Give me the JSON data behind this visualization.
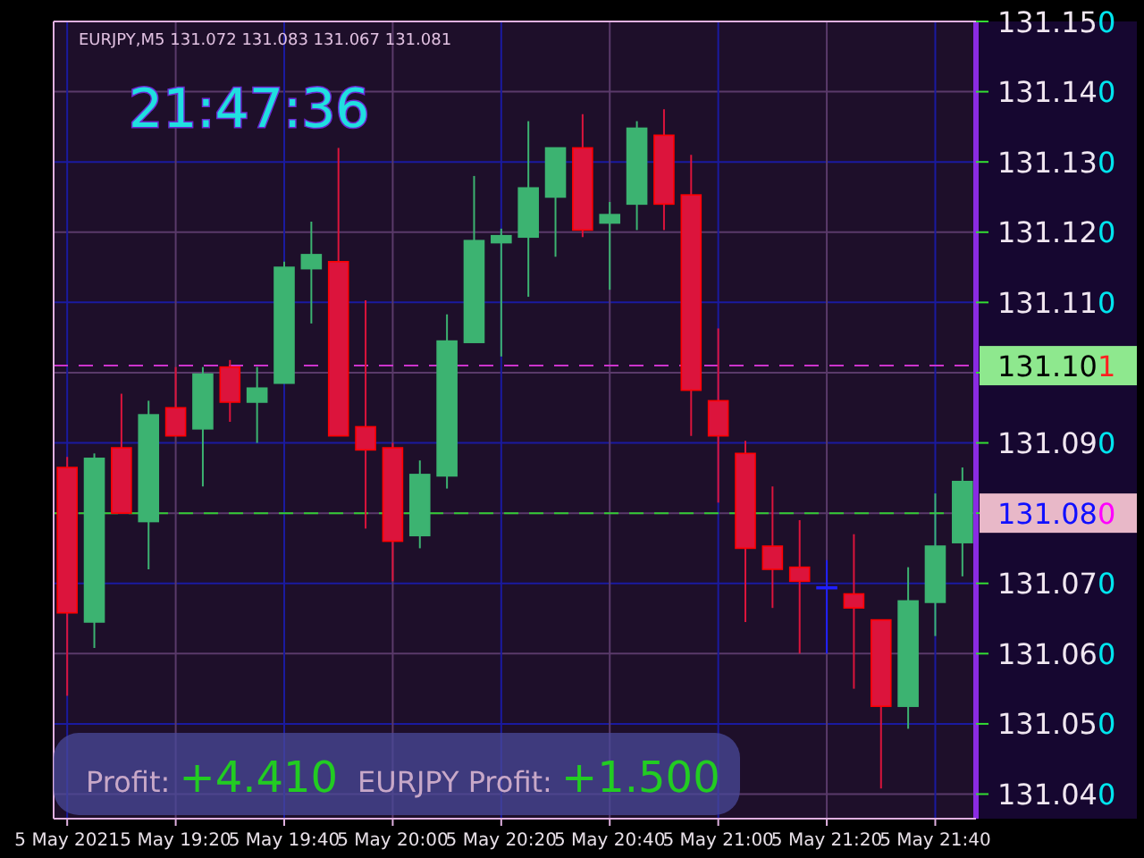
{
  "chart_data": {
    "type": "candlestick",
    "annotations": [
      "EURJPY,M5  131.072 131.083 131.067 131.081",
      "21:47:36",
      "Profit: +4.410",
      "EURJPY Profit: +1.500"
    ],
    "categories": [
      "5 May 2021",
      null,
      null,
      null,
      "5 May 19:20",
      null,
      null,
      null,
      "5 May 19:40",
      null,
      null,
      null,
      "5 May 20:00",
      null,
      null,
      null,
      "5 May 20:20",
      null,
      null,
      null,
      "5 May 20:40",
      null,
      null,
      null,
      "5 May 21:00",
      null,
      null,
      null,
      "5 May 21:20",
      null,
      null,
      null,
      "5 May 21:40",
      null
    ],
    "ohlc": [
      [
        131.0865,
        131.088,
        131.054,
        131.0658
      ],
      [
        131.0645,
        131.0885,
        131.0608,
        131.0878
      ],
      [
        131.0893,
        131.097,
        131.08,
        131.08
      ],
      [
        131.0788,
        131.096,
        131.072,
        131.094
      ],
      [
        131.095,
        131.1008,
        131.091,
        131.091
      ],
      [
        131.092,
        131.1008,
        131.0838,
        131.0998
      ],
      [
        131.1008,
        131.1018,
        131.093,
        131.0958
      ],
      [
        131.0958,
        131.1008,
        131.09,
        131.0978
      ],
      [
        131.0985,
        131.1158,
        131.0985,
        131.115
      ],
      [
        131.1148,
        131.1215,
        131.107,
        131.1168
      ],
      [
        131.1158,
        131.132,
        131.091,
        131.091
      ],
      [
        131.0923,
        131.1103,
        131.0778,
        131.089
      ],
      [
        131.0893,
        131.09,
        131.0703,
        131.076
      ],
      [
        131.0768,
        131.0875,
        131.075,
        131.0855
      ],
      [
        131.0853,
        131.1083,
        131.0835,
        131.1045
      ],
      [
        131.1043,
        131.128,
        131.1043,
        131.1188
      ],
      [
        131.1185,
        131.1205,
        131.1023,
        131.1195
      ],
      [
        131.1193,
        131.1358,
        131.1108,
        131.1263
      ],
      [
        131.125,
        131.132,
        131.1165,
        131.132
      ],
      [
        131.132,
        131.1368,
        131.1193,
        131.1203
      ],
      [
        131.1213,
        131.1243,
        131.1118,
        131.1225
      ],
      [
        131.124,
        131.1358,
        131.1203,
        131.1348
      ],
      [
        131.1338,
        131.1375,
        131.1203,
        131.124
      ],
      [
        131.1253,
        131.131,
        131.091,
        131.0975
      ],
      [
        131.096,
        131.1063,
        131.0815,
        131.091
      ],
      [
        131.0885,
        131.0903,
        131.0645,
        131.075
      ],
      [
        131.0753,
        131.0838,
        131.0665,
        131.072
      ],
      [
        131.0723,
        131.079,
        131.06,
        131.0703
      ],
      [
        131.0695,
        131.0733,
        131.06,
        131.0695
      ],
      [
        131.0685,
        131.077,
        131.055,
        131.0665
      ],
      [
        131.0648,
        131.0648,
        131.0408,
        131.0525
      ],
      [
        131.0525,
        131.0723,
        131.0493,
        131.0675
      ],
      [
        131.0673,
        131.0828,
        131.0625,
        131.0753
      ],
      [
        131.0758,
        131.0865,
        131.071,
        131.0845
      ]
    ],
    "colors": [
      "#dc143c",
      "#3cb371",
      "#dc143c",
      "#3cb371",
      "#dc143c",
      "#3cb371",
      "#dc143c",
      "#3cb371",
      "#3cb371",
      "#3cb371",
      "#dc143c",
      "#dc143c",
      "#dc143c",
      "#3cb371",
      "#3cb371",
      "#3cb371",
      "#3cb371",
      "#3cb371",
      "#3cb371",
      "#dc143c",
      "#3cb371",
      "#3cb371",
      "#dc143c",
      "#dc143c",
      "#dc143c",
      "#dc143c",
      "#dc143c",
      "#dc143c",
      "#2020ff",
      "#dc143c",
      "#dc143c",
      "#3cb371",
      "#3cb371",
      "#3cb371"
    ],
    "ylim": [
      131.0365,
      131.15
    ],
    "yticks": [
      {
        "value": 131.04,
        "label": "131.040"
      },
      {
        "value": 131.05,
        "label": "131.050"
      },
      {
        "value": 131.06,
        "label": "131.060"
      },
      {
        "value": 131.07,
        "label": "131.070"
      },
      {
        "value": 131.08,
        "label": null
      },
      {
        "value": 131.09,
        "label": "131.090"
      },
      {
        "value": 131.1,
        "label": null
      },
      {
        "value": 131.11,
        "label": "131.110"
      },
      {
        "value": 131.12,
        "label": "131.120"
      },
      {
        "value": 131.13,
        "label": "131.130"
      },
      {
        "value": 131.14,
        "label": "131.140"
      },
      {
        "value": 131.15,
        "label": "131.150"
      }
    ],
    "grid": true,
    "ref_lines": [
      {
        "axis": "y",
        "value": 131.101,
        "label": "131.101",
        "color": "#cc33cc",
        "line_style": "dashed"
      },
      {
        "axis": "y",
        "value": 131.08,
        "label": "131.080",
        "color": "#33cc33",
        "line_style": "dashed"
      }
    ]
  }
}
